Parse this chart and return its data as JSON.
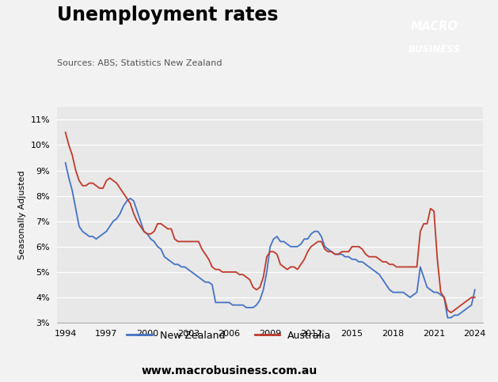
{
  "title": "Unemployment rates",
  "subtitle": "Sources: ABS; Statistics New Zealand",
  "ylabel": "Seasonally Adjusted",
  "website": "www.macrobusiness.com.au",
  "plot_bg": "#e8e8e8",
  "outer_bg": "#f2f2f2",
  "nz_color": "#4472c4",
  "au_color": "#c0392b",
  "ylim": [
    0.03,
    0.115
  ],
  "yticks": [
    0.03,
    0.04,
    0.05,
    0.06,
    0.07,
    0.08,
    0.09,
    0.1,
    0.11
  ],
  "xticks": [
    1994,
    1997,
    2000,
    2003,
    2006,
    2009,
    2012,
    2015,
    2018,
    2021,
    2024
  ],
  "xlim": [
    1993.4,
    2024.6
  ],
  "logo_bg": "#cc1111",
  "nz_x": [
    1994.0,
    1994.25,
    1994.5,
    1994.75,
    1995.0,
    1995.25,
    1995.5,
    1995.75,
    1996.0,
    1996.25,
    1996.5,
    1996.75,
    1997.0,
    1997.25,
    1997.5,
    1997.75,
    1998.0,
    1998.25,
    1998.5,
    1998.75,
    1999.0,
    1999.25,
    1999.5,
    1999.75,
    2000.0,
    2000.25,
    2000.5,
    2000.75,
    2001.0,
    2001.25,
    2001.5,
    2001.75,
    2002.0,
    2002.25,
    2002.5,
    2002.75,
    2003.0,
    2003.25,
    2003.5,
    2003.75,
    2004.0,
    2004.25,
    2004.5,
    2004.75,
    2005.0,
    2005.25,
    2005.5,
    2005.75,
    2006.0,
    2006.25,
    2006.5,
    2006.75,
    2007.0,
    2007.25,
    2007.5,
    2007.75,
    2008.0,
    2008.25,
    2008.5,
    2008.75,
    2009.0,
    2009.25,
    2009.5,
    2009.75,
    2010.0,
    2010.25,
    2010.5,
    2010.75,
    2011.0,
    2011.25,
    2011.5,
    2011.75,
    2012.0,
    2012.25,
    2012.5,
    2012.75,
    2013.0,
    2013.25,
    2013.5,
    2013.75,
    2014.0,
    2014.25,
    2014.5,
    2014.75,
    2015.0,
    2015.25,
    2015.5,
    2015.75,
    2016.0,
    2016.25,
    2016.5,
    2016.75,
    2017.0,
    2017.25,
    2017.5,
    2017.75,
    2018.0,
    2018.25,
    2018.5,
    2018.75,
    2019.0,
    2019.25,
    2019.5,
    2019.75,
    2020.0,
    2020.25,
    2020.5,
    2020.75,
    2021.0,
    2021.25,
    2021.5,
    2021.75,
    2022.0,
    2022.25,
    2022.5,
    2022.75,
    2023.0,
    2023.25,
    2023.5,
    2023.75,
    2024.0
  ],
  "nz_y": [
    0.093,
    0.087,
    0.082,
    0.075,
    0.068,
    0.066,
    0.065,
    0.064,
    0.064,
    0.063,
    0.064,
    0.065,
    0.066,
    0.068,
    0.07,
    0.071,
    0.073,
    0.076,
    0.078,
    0.079,
    0.078,
    0.074,
    0.07,
    0.066,
    0.065,
    0.063,
    0.062,
    0.06,
    0.059,
    0.056,
    0.055,
    0.054,
    0.053,
    0.053,
    0.052,
    0.052,
    0.051,
    0.05,
    0.049,
    0.048,
    0.047,
    0.046,
    0.046,
    0.045,
    0.038,
    0.038,
    0.038,
    0.038,
    0.038,
    0.037,
    0.037,
    0.037,
    0.037,
    0.036,
    0.036,
    0.036,
    0.037,
    0.039,
    0.043,
    0.05,
    0.06,
    0.063,
    0.064,
    0.062,
    0.062,
    0.061,
    0.06,
    0.06,
    0.06,
    0.061,
    0.063,
    0.063,
    0.065,
    0.066,
    0.066,
    0.064,
    0.06,
    0.059,
    0.058,
    0.057,
    0.057,
    0.057,
    0.056,
    0.056,
    0.055,
    0.055,
    0.054,
    0.054,
    0.053,
    0.052,
    0.051,
    0.05,
    0.049,
    0.047,
    0.045,
    0.043,
    0.042,
    0.042,
    0.042,
    0.042,
    0.041,
    0.04,
    0.041,
    0.042,
    0.052,
    0.048,
    0.044,
    0.043,
    0.042,
    0.042,
    0.041,
    0.04,
    0.032,
    0.032,
    0.033,
    0.033,
    0.034,
    0.035,
    0.036,
    0.037,
    0.043
  ],
  "au_x": [
    1994.0,
    1994.25,
    1994.5,
    1994.75,
    1995.0,
    1995.25,
    1995.5,
    1995.75,
    1996.0,
    1996.25,
    1996.5,
    1996.75,
    1997.0,
    1997.25,
    1997.5,
    1997.75,
    1998.0,
    1998.25,
    1998.5,
    1998.75,
    1999.0,
    1999.25,
    1999.5,
    1999.75,
    2000.0,
    2000.25,
    2000.5,
    2000.75,
    2001.0,
    2001.25,
    2001.5,
    2001.75,
    2002.0,
    2002.25,
    2002.5,
    2002.75,
    2003.0,
    2003.25,
    2003.5,
    2003.75,
    2004.0,
    2004.25,
    2004.5,
    2004.75,
    2005.0,
    2005.25,
    2005.5,
    2005.75,
    2006.0,
    2006.25,
    2006.5,
    2006.75,
    2007.0,
    2007.25,
    2007.5,
    2007.75,
    2008.0,
    2008.25,
    2008.5,
    2008.75,
    2009.0,
    2009.25,
    2009.5,
    2009.75,
    2010.0,
    2010.25,
    2010.5,
    2010.75,
    2011.0,
    2011.25,
    2011.5,
    2011.75,
    2012.0,
    2012.25,
    2012.5,
    2012.75,
    2013.0,
    2013.25,
    2013.5,
    2013.75,
    2014.0,
    2014.25,
    2014.5,
    2014.75,
    2015.0,
    2015.25,
    2015.5,
    2015.75,
    2016.0,
    2016.25,
    2016.5,
    2016.75,
    2017.0,
    2017.25,
    2017.5,
    2017.75,
    2018.0,
    2018.25,
    2018.5,
    2018.75,
    2019.0,
    2019.25,
    2019.5,
    2019.75,
    2020.0,
    2020.25,
    2020.5,
    2020.75,
    2021.0,
    2021.25,
    2021.5,
    2021.75,
    2022.0,
    2022.25,
    2022.5,
    2022.75,
    2023.0,
    2023.25,
    2023.5,
    2023.75,
    2024.0
  ],
  "au_y": [
    0.105,
    0.1,
    0.096,
    0.09,
    0.086,
    0.084,
    0.084,
    0.085,
    0.085,
    0.084,
    0.083,
    0.083,
    0.086,
    0.087,
    0.086,
    0.085,
    0.083,
    0.081,
    0.079,
    0.077,
    0.073,
    0.07,
    0.068,
    0.066,
    0.065,
    0.065,
    0.066,
    0.069,
    0.069,
    0.068,
    0.067,
    0.067,
    0.063,
    0.062,
    0.062,
    0.062,
    0.062,
    0.062,
    0.062,
    0.062,
    0.059,
    0.057,
    0.055,
    0.052,
    0.051,
    0.051,
    0.05,
    0.05,
    0.05,
    0.05,
    0.05,
    0.049,
    0.049,
    0.048,
    0.047,
    0.044,
    0.043,
    0.044,
    0.048,
    0.056,
    0.058,
    0.058,
    0.057,
    0.053,
    0.052,
    0.051,
    0.052,
    0.052,
    0.051,
    0.053,
    0.055,
    0.058,
    0.06,
    0.061,
    0.062,
    0.062,
    0.059,
    0.058,
    0.058,
    0.057,
    0.057,
    0.058,
    0.058,
    0.058,
    0.06,
    0.06,
    0.06,
    0.059,
    0.057,
    0.056,
    0.056,
    0.056,
    0.055,
    0.054,
    0.054,
    0.053,
    0.053,
    0.052,
    0.052,
    0.052,
    0.052,
    0.052,
    0.052,
    0.052,
    0.066,
    0.069,
    0.069,
    0.075,
    0.074,
    0.055,
    0.042,
    0.04,
    0.035,
    0.034,
    0.035,
    0.036,
    0.037,
    0.038,
    0.039,
    0.04,
    0.04
  ]
}
